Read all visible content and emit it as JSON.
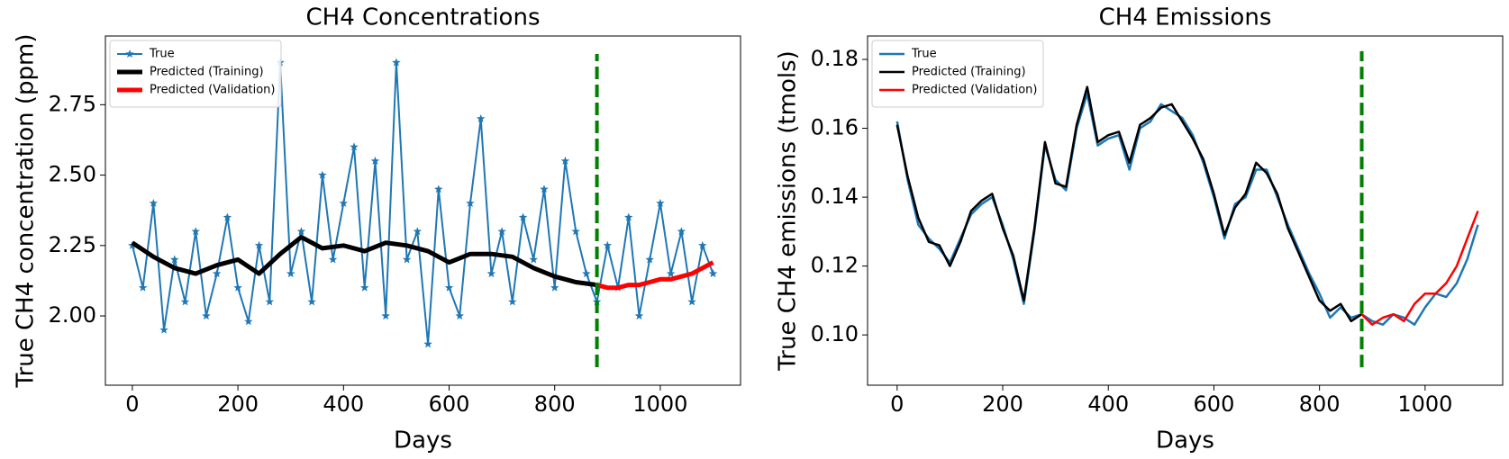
{
  "chart_data": [
    {
      "type": "line",
      "title": "CH4 Concentrations",
      "xlabel": "Days",
      "ylabel": "True CH4 concentration (ppm)",
      "xlim": [
        -51,
        1152
      ],
      "xticks": [
        0,
        200,
        400,
        600,
        800,
        1000
      ],
      "ylim": [
        1.754,
        2.994
      ],
      "yticks": [
        {
          "value": 2,
          "label": "2.00"
        },
        {
          "value": 2.25,
          "label": "2.25"
        },
        {
          "value": 2.5,
          "label": "2.50"
        },
        {
          "value": 2.75,
          "label": "2.75"
        }
      ],
      "legend": "upper left",
      "vline": {
        "x": 880,
        "ymin": 1.818,
        "ymax": 2.93,
        "color": "#008000"
      },
      "series": [
        {
          "name": "True",
          "color": "#1f77b4",
          "width": 2,
          "marker": "star",
          "x": [
            0,
            20,
            40,
            60,
            80,
            100,
            120,
            140,
            160,
            180,
            200,
            220,
            240,
            260,
            280,
            300,
            320,
            340,
            360,
            380,
            400,
            420,
            440,
            460,
            480,
            500,
            520,
            540,
            560,
            580,
            600,
            620,
            640,
            660,
            680,
            700,
            720,
            740,
            760,
            780,
            800,
            820,
            840,
            860,
            880,
            900,
            920,
            940,
            960,
            980,
            1000,
            1020,
            1040,
            1060,
            1080,
            1100
          ],
          "values": [
            2.25,
            2.1,
            2.4,
            1.95,
            2.2,
            2.05,
            2.3,
            2.0,
            2.15,
            2.35,
            2.1,
            1.98,
            2.25,
            2.05,
            2.9,
            2.15,
            2.3,
            2.05,
            2.5,
            2.2,
            2.4,
            2.6,
            2.1,
            2.55,
            2.0,
            2.9,
            2.2,
            2.3,
            1.9,
            2.45,
            2.1,
            2.0,
            2.4,
            2.7,
            2.15,
            2.3,
            2.05,
            2.35,
            2.2,
            2.45,
            2.1,
            2.55,
            2.3,
            2.15,
            2.05,
            2.25,
            2.1,
            2.35,
            2.0,
            2.2,
            2.4,
            2.15,
            2.3,
            2.05,
            2.25,
            2.15
          ]
        },
        {
          "name": "Predicted (Training)",
          "color": "#000000",
          "width": 5,
          "x": [
            0,
            40,
            80,
            120,
            160,
            200,
            240,
            280,
            320,
            360,
            400,
            440,
            480,
            520,
            560,
            600,
            640,
            680,
            720,
            760,
            800,
            840,
            880
          ],
          "values": [
            2.26,
            2.21,
            2.17,
            2.15,
            2.18,
            2.2,
            2.15,
            2.22,
            2.28,
            2.24,
            2.25,
            2.23,
            2.26,
            2.25,
            2.23,
            2.19,
            2.22,
            2.22,
            2.21,
            2.17,
            2.14,
            2.12,
            2.11
          ]
        },
        {
          "name": "Predicted (Validation)",
          "color": "#ff0000",
          "width": 5,
          "x": [
            880,
            900,
            920,
            940,
            960,
            980,
            1000,
            1020,
            1040,
            1060,
            1080,
            1100
          ],
          "values": [
            2.11,
            2.1,
            2.1,
            2.11,
            2.11,
            2.12,
            2.13,
            2.13,
            2.14,
            2.15,
            2.17,
            2.19
          ]
        }
      ]
    },
    {
      "type": "line",
      "title": "CH4 Emissions",
      "xlabel": "Days",
      "ylabel": "True CH4 emissions (tmols)",
      "xlim": [
        -56,
        1147
      ],
      "xticks": [
        0,
        200,
        400,
        600,
        800,
        1000
      ],
      "ylim": [
        0.0854,
        0.1868
      ],
      "yticks": [
        {
          "value": 0.1,
          "label": "0.10"
        },
        {
          "value": 0.12,
          "label": "0.12"
        },
        {
          "value": 0.14,
          "label": "0.14"
        },
        {
          "value": 0.16,
          "label": "0.16"
        },
        {
          "value": 0.18,
          "label": "0.18"
        }
      ],
      "legend": "upper left",
      "vline": {
        "x": 880,
        "ymin": 0.0906,
        "ymax": 0.1824,
        "color": "#008000"
      },
      "series": [
        {
          "name": "True",
          "color": "#1f77b4",
          "width": 2.5,
          "x": [
            0,
            20,
            40,
            60,
            80,
            100,
            120,
            140,
            160,
            180,
            200,
            220,
            240,
            260,
            280,
            300,
            320,
            340,
            360,
            380,
            400,
            420,
            440,
            460,
            480,
            500,
            520,
            540,
            560,
            580,
            600,
            620,
            640,
            660,
            680,
            700,
            720,
            740,
            760,
            780,
            800,
            820,
            840,
            860,
            880,
            900,
            920,
            940,
            960,
            980,
            1000,
            1020,
            1040,
            1060,
            1080,
            1100
          ],
          "values": [
            0.162,
            0.145,
            0.132,
            0.128,
            0.125,
            0.121,
            0.128,
            0.135,
            0.138,
            0.14,
            0.132,
            0.122,
            0.109,
            0.13,
            0.155,
            0.145,
            0.142,
            0.16,
            0.17,
            0.155,
            0.157,
            0.158,
            0.148,
            0.16,
            0.162,
            0.167,
            0.165,
            0.163,
            0.158,
            0.15,
            0.14,
            0.128,
            0.138,
            0.14,
            0.148,
            0.148,
            0.14,
            0.132,
            0.125,
            0.118,
            0.112,
            0.105,
            0.108,
            0.105,
            0.106,
            0.104,
            0.103,
            0.106,
            0.105,
            0.103,
            0.108,
            0.112,
            0.111,
            0.115,
            0.122,
            0.132
          ]
        },
        {
          "name": "Predicted (Training)",
          "color": "#000000",
          "width": 2.5,
          "x": [
            0,
            20,
            40,
            60,
            80,
            100,
            120,
            140,
            160,
            180,
            200,
            220,
            240,
            260,
            280,
            300,
            320,
            340,
            360,
            380,
            400,
            420,
            440,
            460,
            480,
            500,
            520,
            540,
            560,
            580,
            600,
            620,
            640,
            660,
            680,
            700,
            720,
            740,
            760,
            780,
            800,
            820,
            840,
            860,
            880
          ],
          "values": [
            0.161,
            0.146,
            0.134,
            0.127,
            0.126,
            0.12,
            0.127,
            0.136,
            0.139,
            0.141,
            0.131,
            0.123,
            0.11,
            0.131,
            0.156,
            0.144,
            0.143,
            0.161,
            0.172,
            0.156,
            0.158,
            0.159,
            0.15,
            0.161,
            0.163,
            0.166,
            0.167,
            0.162,
            0.157,
            0.151,
            0.141,
            0.129,
            0.137,
            0.141,
            0.15,
            0.147,
            0.141,
            0.131,
            0.124,
            0.117,
            0.11,
            0.107,
            0.109,
            0.104,
            0.106
          ]
        },
        {
          "name": "Predicted (Validation)",
          "color": "#ff0000",
          "width": 2.5,
          "x": [
            880,
            900,
            920,
            940,
            960,
            980,
            1000,
            1020,
            1040,
            1060,
            1080,
            1100
          ],
          "values": [
            0.106,
            0.103,
            0.105,
            0.106,
            0.104,
            0.109,
            0.112,
            0.112,
            0.115,
            0.12,
            0.128,
            0.136
          ]
        }
      ]
    }
  ]
}
